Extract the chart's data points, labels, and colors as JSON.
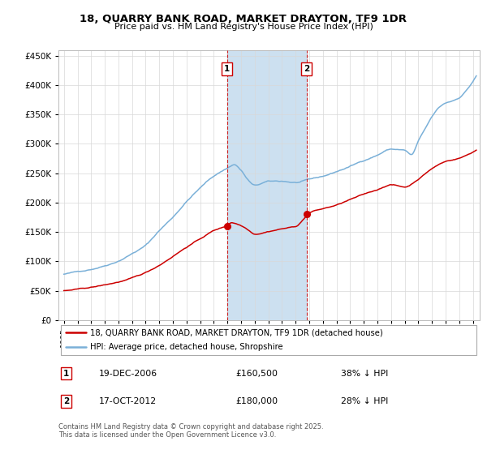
{
  "title": "18, QUARRY BANK ROAD, MARKET DRAYTON, TF9 1DR",
  "subtitle": "Price paid vs. HM Land Registry's House Price Index (HPI)",
  "sale1_year": 2006.96,
  "sale1_price": 160500,
  "sale2_year": 2012.79,
  "sale2_price": 180000,
  "legend1": "18, QUARRY BANK ROAD, MARKET DRAYTON, TF9 1DR (detached house)",
  "legend2": "HPI: Average price, detached house, Shropshire",
  "table1_col1": "19-DEC-2006",
  "table1_col2": "£160,500",
  "table1_col3": "38% ↓ HPI",
  "table2_col1": "17-OCT-2012",
  "table2_col2": "£180,000",
  "table2_col3": "28% ↓ HPI",
  "footnote": "Contains HM Land Registry data © Crown copyright and database right 2025.\nThis data is licensed under the Open Government Licence v3.0.",
  "hpi_color": "#7ab0d8",
  "price_color": "#cc0000",
  "shade_color": "#cce0f0",
  "ylim_max": 460000,
  "xlim_start": 1994.6,
  "xlim_end": 2025.5
}
